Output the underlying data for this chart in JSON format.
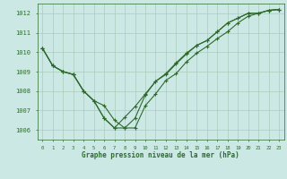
{
  "title": "Graphe pression niveau de la mer (hPa)",
  "bg_color": "#cce8e5",
  "grid_color": "#aaccbb",
  "line_color": "#2d6b2d",
  "ylim": [
    1005.5,
    1012.5
  ],
  "yticks": [
    1006,
    1007,
    1008,
    1009,
    1010,
    1011,
    1012
  ],
  "x_labels": [
    "0",
    "1",
    "2",
    "3",
    "4",
    "5",
    "6",
    "7",
    "8",
    "9",
    "10",
    "11",
    "12",
    "13",
    "14",
    "15",
    "16",
    "17",
    "18",
    "19",
    "20",
    "21",
    "22",
    "23"
  ],
  "series": [
    [
      1010.2,
      1009.3,
      1009.0,
      1008.85,
      1008.0,
      1007.5,
      1007.25,
      1006.5,
      1006.1,
      1006.1,
      1007.25,
      1007.85,
      1008.55,
      1008.9,
      1009.5,
      1009.95,
      1010.3,
      1010.7,
      1011.05,
      1011.5,
      1011.85,
      1012.0,
      1012.15,
      1012.2
    ],
    [
      1010.2,
      1009.3,
      1009.0,
      1008.85,
      1008.0,
      1007.5,
      1006.6,
      1006.1,
      1006.1,
      1006.6,
      1007.8,
      1008.5,
      1008.85,
      1009.4,
      1009.9,
      1010.35,
      1010.6,
      1011.05,
      1011.5,
      1011.75,
      1012.0,
      1012.0,
      1012.15,
      1012.2
    ],
    [
      1010.2,
      1009.3,
      1009.0,
      1008.85,
      1008.0,
      1007.5,
      1006.6,
      1006.1,
      1006.65,
      1007.2,
      1007.85,
      1008.5,
      1008.9,
      1009.45,
      1009.95,
      1010.35,
      1010.6,
      1011.05,
      1011.5,
      1011.75,
      1012.0,
      1012.0,
      1012.15,
      1012.2
    ]
  ]
}
